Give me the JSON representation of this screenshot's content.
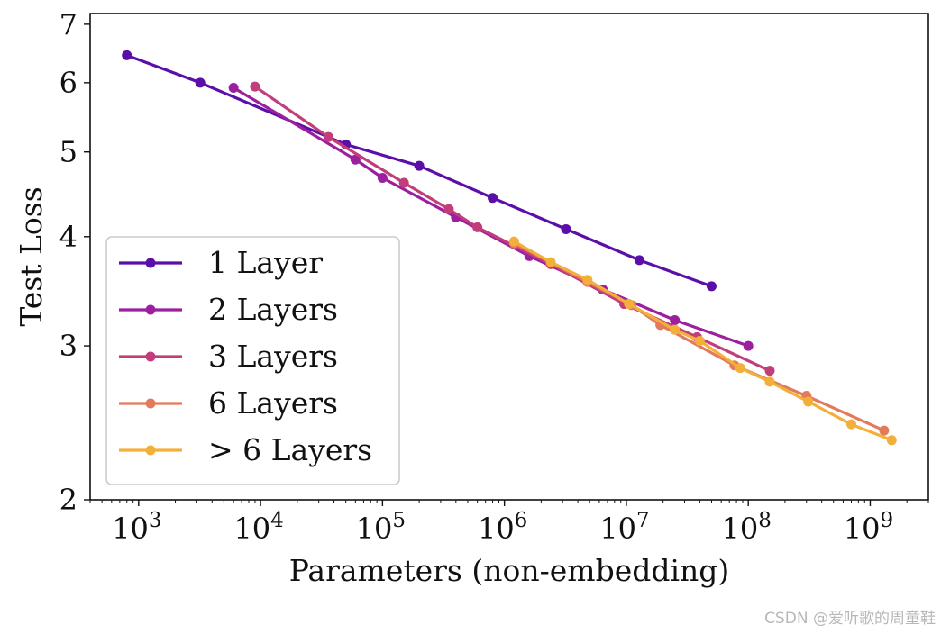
{
  "chart_data": {
    "type": "line",
    "title": "",
    "xlabel": "Parameters (non-embedding)",
    "ylabel": "Test Loss",
    "xscale": "log",
    "yscale": "log",
    "xlim": [
      400,
      3000000000
    ],
    "ylim": [
      2,
      7.2
    ],
    "x_ticks": [
      {
        "base": "10",
        "exp": "3"
      },
      {
        "base": "10",
        "exp": "4"
      },
      {
        "base": "10",
        "exp": "5"
      },
      {
        "base": "10",
        "exp": "6"
      },
      {
        "base": "10",
        "exp": "7"
      },
      {
        "base": "10",
        "exp": "8"
      },
      {
        "base": "10",
        "exp": "9"
      }
    ],
    "y_ticks": [
      "2",
      "3",
      "4",
      "5",
      "6",
      "7"
    ],
    "legend_position": "lower-left",
    "series": [
      {
        "name": "1 Layer",
        "color": "#5c0fa8",
        "x": [
          800,
          3200,
          50000,
          200000,
          800000,
          3200000,
          12800000,
          50000000
        ],
        "y": [
          6.45,
          6.0,
          5.1,
          4.82,
          4.43,
          4.08,
          3.76,
          3.51
        ]
      },
      {
        "name": "2 Layers",
        "color": "#9c1fa0",
        "x": [
          6000,
          60000,
          100000,
          400000,
          1600000,
          6400000,
          25000000,
          100000000
        ],
        "y": [
          5.92,
          4.9,
          4.67,
          4.21,
          3.8,
          3.48,
          3.21,
          3.0
        ]
      },
      {
        "name": "3 Layers",
        "color": "#c23e7a",
        "x": [
          9000,
          36000,
          150000,
          350000,
          600000,
          2400000,
          9600000,
          38000000,
          150000000
        ],
        "y": [
          5.94,
          5.2,
          4.61,
          4.3,
          4.1,
          3.72,
          3.35,
          3.07,
          2.81
        ]
      },
      {
        "name": "6 Layers",
        "color": "#e37a5b",
        "x": [
          1200000,
          4800000,
          11000000,
          19000000,
          77000000,
          300000000,
          1300000000
        ],
        "y": [
          3.93,
          3.55,
          3.34,
          3.17,
          2.85,
          2.63,
          2.4
        ]
      },
      {
        "name": "> 6 Layers",
        "color": "#f2b03a",
        "x": [
          1200000,
          2400000,
          4800000,
          10500000,
          25000000,
          40000000,
          86000000,
          150000000,
          310000000,
          700000000,
          1500000000
        ],
        "y": [
          3.95,
          3.74,
          3.57,
          3.35,
          3.13,
          3.04,
          2.83,
          2.73,
          2.59,
          2.44,
          2.34
        ]
      }
    ]
  },
  "watermark": "CSDN @爱听歌的周童鞋"
}
